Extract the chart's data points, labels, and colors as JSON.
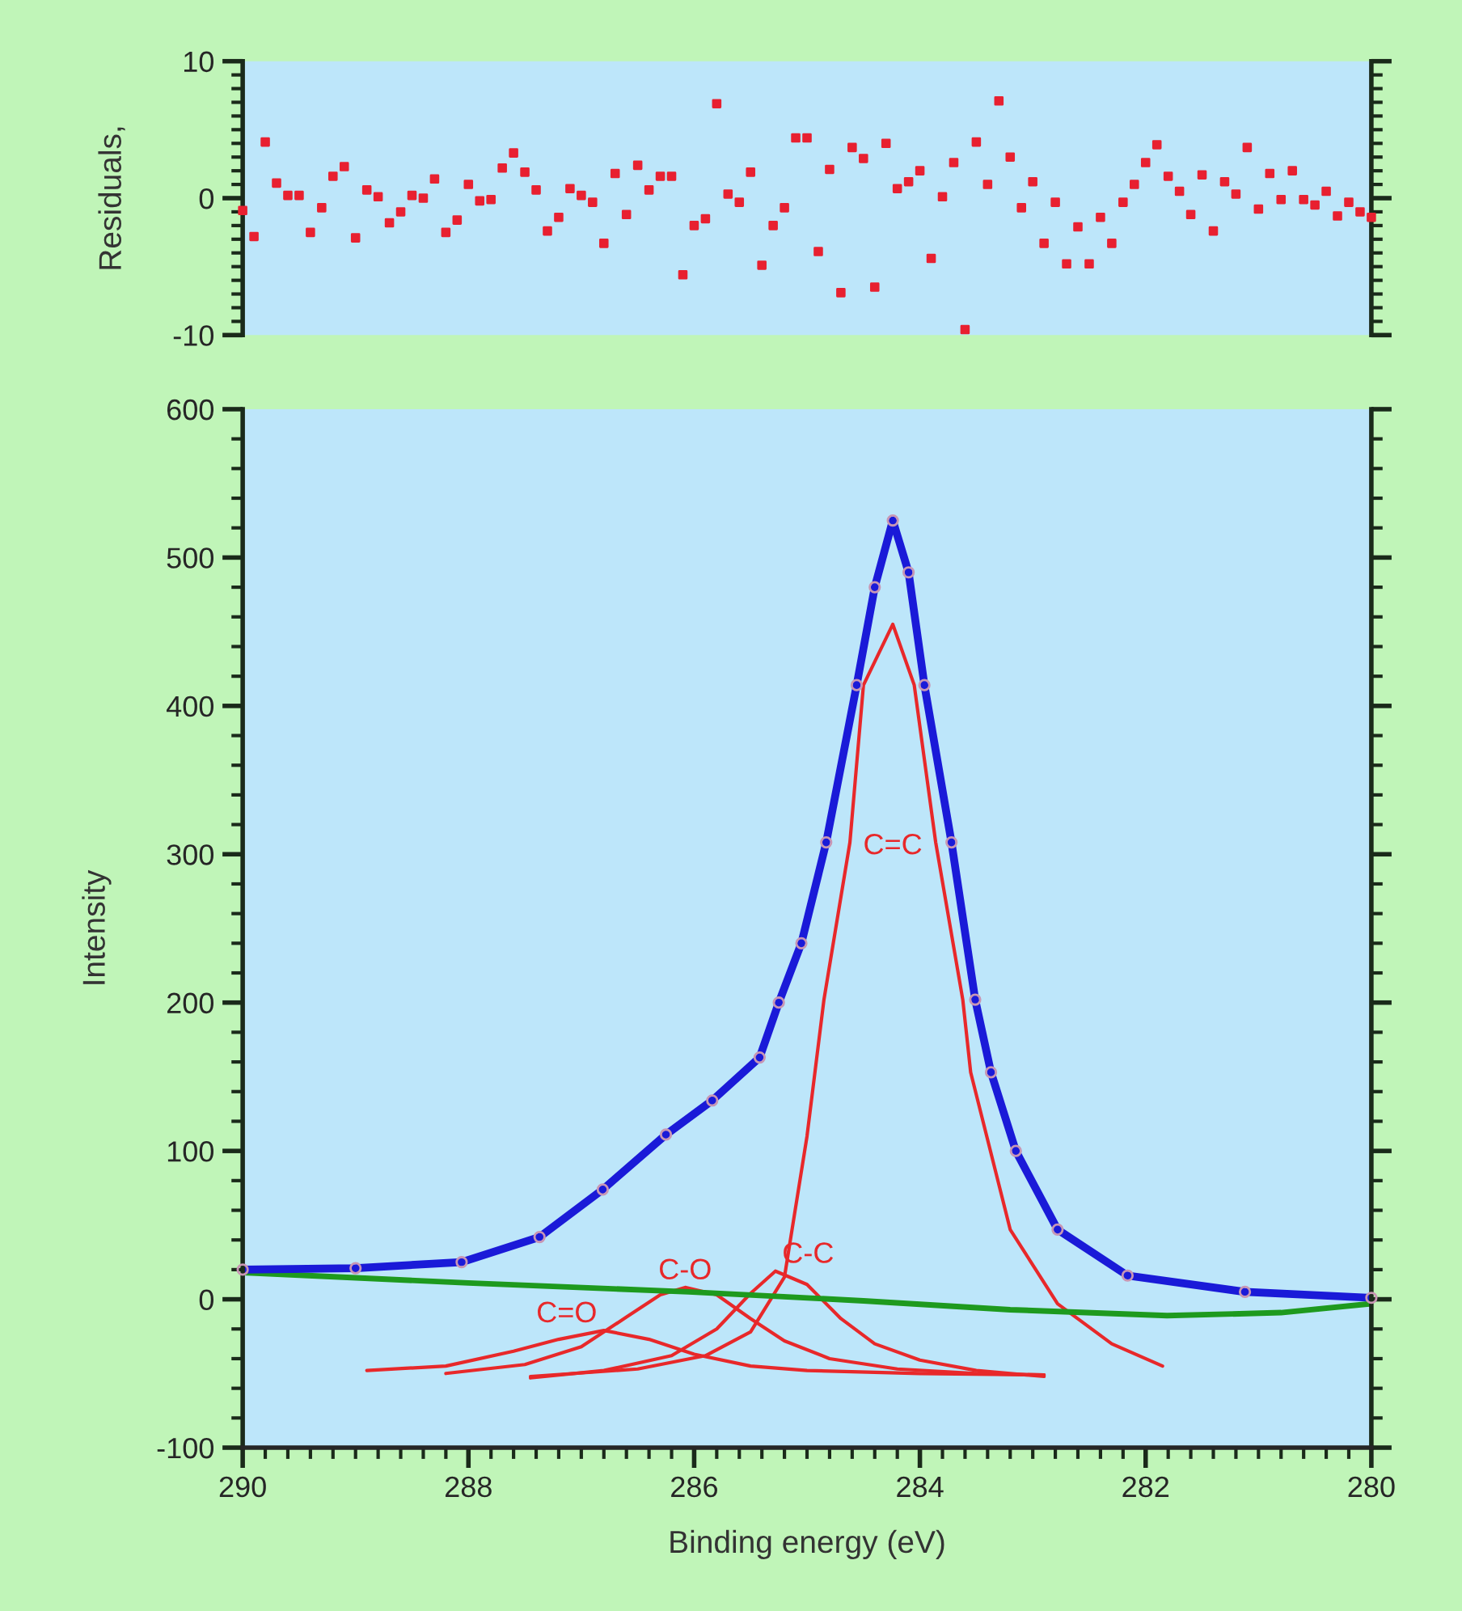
{
  "chart_data": [
    {
      "type": "scatter",
      "ylabel": "Residuals,",
      "xlim": [
        290,
        280
      ],
      "ylim": [
        -10,
        10
      ],
      "yticks": [
        -10,
        {
          "value": -9,
          "label": null
        },
        {
          "value": -8,
          "label": null
        },
        {
          "value": -7,
          "label": null
        },
        {
          "value": -6,
          "label": null
        },
        {
          "value": -5,
          "label": null
        },
        {
          "value": -4,
          "label": null
        },
        {
          "value": -3,
          "label": null
        },
        {
          "value": -2,
          "label": null
        },
        {
          "value": -1,
          "label": null
        },
        0,
        {
          "value": 1,
          "label": null
        },
        {
          "value": 2,
          "label": null
        },
        {
          "value": 3,
          "label": null
        },
        {
          "value": 4,
          "label": null
        },
        {
          "value": 5,
          "label": null
        },
        {
          "value": 6,
          "label": null
        },
        {
          "value": 7,
          "label": null
        },
        {
          "value": 8,
          "label": null
        },
        {
          "value": 9,
          "label": null
        },
        10
      ],
      "tick_labels": "y",
      "grid": false,
      "legend": false,
      "marker": "square",
      "series": [
        {
          "color": "#e82030",
          "x": [
            290.0,
            289.9,
            289.8,
            289.7,
            289.6,
            289.5,
            289.4,
            289.3,
            289.2,
            289.1,
            289.0,
            288.9,
            288.8,
            288.7,
            288.6,
            288.5,
            288.4,
            288.3,
            288.2,
            288.1,
            288.0,
            287.9,
            287.8,
            287.7,
            287.6,
            287.5,
            287.4,
            287.3,
            287.2,
            287.1,
            287.0,
            286.9,
            286.8,
            286.7,
            286.6,
            286.5,
            286.4,
            286.3,
            286.2,
            286.1,
            286.0,
            285.9,
            285.8,
            285.7,
            285.6,
            285.5,
            285.4,
            285.3,
            285.2,
            285.1,
            285.0,
            284.9,
            284.8,
            284.7,
            284.6,
            284.5,
            284.4,
            284.3,
            284.2,
            284.1,
            284.0,
            283.9,
            283.8,
            283.7,
            283.6,
            283.5,
            283.4,
            283.3,
            283.2,
            283.1,
            283.0,
            282.9,
            282.8,
            282.7,
            282.6,
            282.5,
            282.4,
            282.3,
            282.2,
            282.1,
            282.0,
            281.9,
            281.8,
            281.7,
            281.6,
            281.5,
            281.4,
            281.3,
            281.2,
            281.1,
            281.0,
            280.9,
            280.8,
            280.7,
            280.6,
            280.5,
            280.4,
            280.3,
            280.2,
            280.1,
            280.0
          ],
          "values": [
            -0.9,
            -2.8,
            4.1,
            1.1,
            0.2,
            0.2,
            -2.5,
            -0.7,
            1.6,
            2.3,
            -2.9,
            0.6,
            0.1,
            -1.8,
            -1.0,
            0.2,
            0.0,
            1.4,
            -2.5,
            -1.6,
            1.0,
            -0.2,
            -0.1,
            2.2,
            3.3,
            1.9,
            0.6,
            -2.4,
            -1.4,
            0.7,
            0.2,
            -0.3,
            -3.3,
            1.8,
            -1.2,
            2.4,
            0.6,
            1.6,
            1.6,
            -5.6,
            -2.0,
            -1.5,
            6.9,
            0.3,
            -0.3,
            1.9,
            -4.9,
            -2.0,
            -0.7,
            4.4,
            4.4,
            -3.9,
            2.1,
            -6.9,
            3.7,
            2.9,
            -6.5,
            4.0,
            0.7,
            1.2,
            2.0,
            -4.4,
            0.1,
            2.6,
            -9.6,
            4.1,
            1.0,
            7.1,
            3.0,
            -0.7,
            1.2,
            -3.3,
            -0.3,
            -4.8,
            -2.1,
            -4.8,
            -1.4,
            -3.3,
            -0.3,
            1.0,
            2.6,
            3.9,
            1.6,
            0.5,
            -1.2,
            1.7,
            -2.4,
            1.2,
            0.3,
            3.7,
            -0.8,
            1.8,
            -0.1,
            2.0,
            -0.1,
            -0.5,
            0.5,
            -1.3,
            -0.3,
            -1.0,
            -1.4
          ]
        }
      ]
    },
    {
      "type": "line",
      "xlabel": "Binding energy (eV)",
      "ylabel": "Intensity",
      "xlim": [
        290,
        280
      ],
      "ylim": [
        -100,
        600
      ],
      "xticks": [
        290,
        {
          "value": 289.8,
          "label": null
        },
        {
          "value": 289.6,
          "label": null
        },
        {
          "value": 289.4,
          "label": null
        },
        {
          "value": 289.2,
          "label": null
        },
        {
          "value": 289,
          "label": null
        },
        {
          "value": 288.8,
          "label": null
        },
        {
          "value": 288.6,
          "label": null
        },
        {
          "value": 288.4,
          "label": null
        },
        {
          "value": 288.2,
          "label": null
        },
        288,
        {
          "value": 287.8,
          "label": null
        },
        {
          "value": 287.6,
          "label": null
        },
        {
          "value": 287.4,
          "label": null
        },
        {
          "value": 287.2,
          "label": null
        },
        {
          "value": 287,
          "label": null
        },
        {
          "value": 286.8,
          "label": null
        },
        {
          "value": 286.6,
          "label": null
        },
        {
          "value": 286.4,
          "label": null
        },
        {
          "value": 286.2,
          "label": null
        },
        286,
        {
          "value": 285.8,
          "label": null
        },
        {
          "value": 285.6,
          "label": null
        },
        {
          "value": 285.4,
          "label": null
        },
        {
          "value": 285.2,
          "label": null
        },
        {
          "value": 285,
          "label": null
        },
        {
          "value": 284.8,
          "label": null
        },
        {
          "value": 284.6,
          "label": null
        },
        {
          "value": 284.4,
          "label": null
        },
        {
          "value": 284.2,
          "label": null
        },
        284,
        {
          "value": 283.8,
          "label": null
        },
        {
          "value": 283.6,
          "label": null
        },
        {
          "value": 283.4,
          "label": null
        },
        {
          "value": 283.2,
          "label": null
        },
        {
          "value": 283,
          "label": null
        },
        {
          "value": 282.8,
          "label": null
        },
        {
          "value": 282.6,
          "label": null
        },
        {
          "value": 282.4,
          "label": null
        },
        {
          "value": 282.2,
          "label": null
        },
        282,
        {
          "value": 281.8,
          "label": null
        },
        {
          "value": 281.6,
          "label": null
        },
        {
          "value": 281.4,
          "label": null
        },
        {
          "value": 281.2,
          "label": null
        },
        {
          "value": 281,
          "label": null
        },
        {
          "value": 280.8,
          "label": null
        },
        {
          "value": 280.6,
          "label": null
        },
        {
          "value": 280.4,
          "label": null
        },
        {
          "value": 280.2,
          "label": null
        },
        280
      ],
      "yticks": [
        -100,
        {
          "value": -80,
          "label": null
        },
        {
          "value": -60,
          "label": null
        },
        {
          "value": -40,
          "label": null
        },
        {
          "value": -20,
          "label": null
        },
        0,
        {
          "value": 20,
          "label": null
        },
        {
          "value": 40,
          "label": null
        },
        {
          "value": 60,
          "label": null
        },
        {
          "value": 80,
          "label": null
        },
        100,
        {
          "value": 120,
          "label": null
        },
        {
          "value": 140,
          "label": null
        },
        {
          "value": 160,
          "label": null
        },
        {
          "value": 180,
          "label": null
        },
        200,
        {
          "value": 220,
          "label": null
        },
        {
          "value": 240,
          "label": null
        },
        {
          "value": 260,
          "label": null
        },
        {
          "value": 280,
          "label": null
        },
        300,
        {
          "value": 320,
          "label": null
        },
        {
          "value": 340,
          "label": null
        },
        {
          "value": 360,
          "label": null
        },
        {
          "value": 380,
          "label": null
        },
        400,
        {
          "value": 420,
          "label": null
        },
        {
          "value": 440,
          "label": null
        },
        {
          "value": 460,
          "label": null
        },
        {
          "value": 480,
          "label": null
        },
        500,
        {
          "value": 520,
          "label": null
        },
        {
          "value": 540,
          "label": null
        },
        {
          "value": 560,
          "label": null
        },
        {
          "value": 580,
          "label": null
        },
        600
      ],
      "grid": false,
      "legend": false,
      "line_style": "solid",
      "series": [
        {
          "type": "line",
          "name": "C=O",
          "color": "#e8282a",
          "x": [
            288.9,
            288.2,
            287.6,
            287.2,
            286.8,
            286.4,
            286.0,
            285.5,
            285.0,
            284.0,
            282.9
          ],
          "values": [
            -48,
            -45,
            -35,
            -27,
            -21,
            -27,
            -37,
            -45,
            -48,
            -50,
            -51
          ]
        },
        {
          "type": "line",
          "name": "C-O",
          "color": "#e8282a",
          "x": [
            288.2,
            287.5,
            287.0,
            286.6,
            286.3,
            286.08,
            285.8,
            285.5,
            285.2,
            284.8,
            284.2,
            283.5,
            282.9
          ],
          "values": [
            -50,
            -44,
            -32,
            -12,
            3,
            8,
            3,
            -13,
            -28,
            -40,
            -47,
            -50,
            -51
          ]
        },
        {
          "type": "line",
          "name": "C-C",
          "color": "#e8282a",
          "x": [
            287.45,
            286.8,
            286.2,
            285.8,
            285.5,
            285.28,
            285.0,
            284.7,
            284.4,
            284.0,
            283.5,
            282.9
          ],
          "values": [
            -53,
            -48,
            -38,
            -20,
            4,
            19,
            10,
            -13,
            -30,
            -41,
            -48,
            -52
          ]
        },
        {
          "type": "line",
          "name": "C=C",
          "color": "#e8282a",
          "x": [
            287.45,
            286.5,
            285.9,
            285.5,
            285.2,
            285.0,
            284.85,
            284.62,
            284.5,
            284.24,
            284.05,
            283.86,
            283.62,
            283.55,
            283.2,
            282.78,
            282.3,
            281.85
          ],
          "values": [
            -52,
            -47,
            -38,
            -22,
            15,
            110,
            202,
            308,
            414,
            455,
            414,
            308,
            202,
            153,
            47,
            -3,
            -30,
            -45
          ]
        },
        {
          "type": "line",
          "color": "#1e9a1e",
          "x": [
            290,
            288,
            286.05,
            284.5,
            283.2,
            281.81,
            280.8,
            280
          ],
          "values": [
            18,
            11,
            5,
            -1,
            -7,
            -11,
            -9,
            -3
          ]
        },
        {
          "type": "scatter",
          "color": "#c896b4",
          "marker": "circle",
          "x": [
            290,
            289,
            288.06,
            287.37,
            286.81,
            286.25,
            285.84,
            285.42,
            285.25,
            285.05,
            284.83,
            284.56,
            284.4,
            284.24,
            284.1,
            283.96,
            283.72,
            283.51,
            283.37,
            283.15,
            282.78,
            282.16,
            281.12,
            280
          ],
          "values": [
            20,
            21,
            25,
            42,
            74,
            111,
            134,
            163,
            200,
            240,
            308,
            414,
            480,
            525,
            490,
            414,
            308,
            202,
            153,
            100,
            47,
            16,
            5,
            1
          ]
        },
        {
          "type": "line",
          "color": "#1a1ad8",
          "x": [
            290,
            289,
            288.06,
            287.37,
            286.81,
            286.25,
            285.84,
            285.42,
            285.25,
            285.05,
            284.83,
            284.56,
            284.4,
            284.24,
            284.1,
            283.96,
            283.72,
            283.51,
            283.37,
            283.15,
            282.78,
            282.16,
            281.12,
            280
          ],
          "values": [
            20,
            21,
            25,
            42,
            74,
            111,
            134,
            163,
            200,
            240,
            308,
            414,
            480,
            525,
            490,
            414,
            308,
            202,
            153,
            100,
            47,
            16,
            5,
            1
          ]
        }
      ]
    }
  ]
}
